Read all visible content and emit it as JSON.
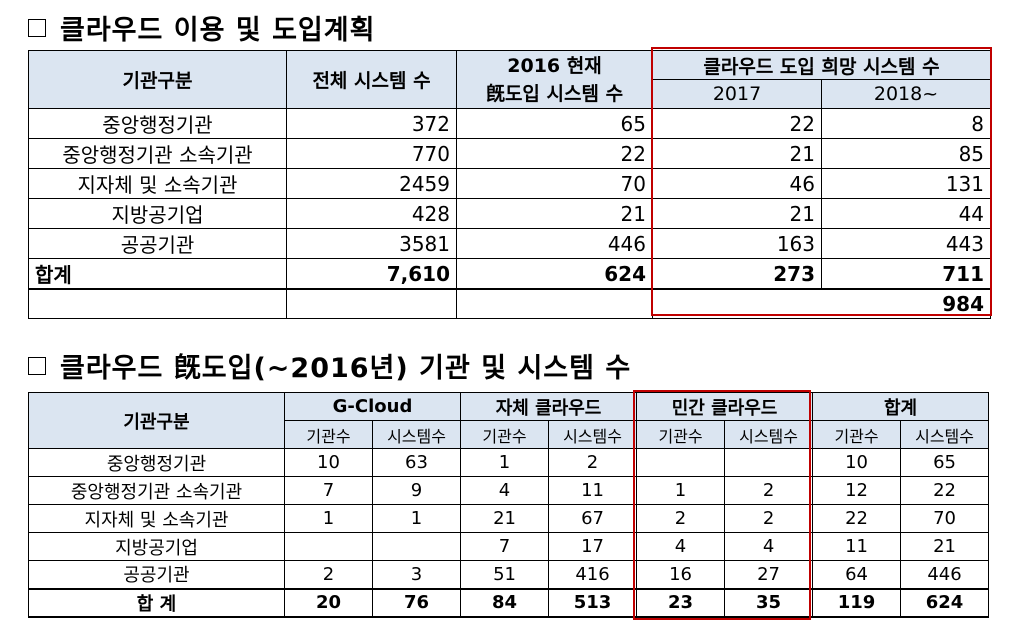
{
  "section1": {
    "title": "클라우드 이용 및 도입계획",
    "headers": {
      "org": "기관구분",
      "total": "전체 시스템 수",
      "adopted_line1": "2016 현재",
      "adopted_line2": "旣도입 시스템 수",
      "plan": "클라우드 도입 희망 시스템 수",
      "plan_2017": "2017",
      "plan_2018": "2018~"
    },
    "rows": [
      {
        "name": "중앙행정기관",
        "total": "372",
        "adopted": "65",
        "y2017": "22",
        "y2018": "8"
      },
      {
        "name": "중앙행정기관 소속기관",
        "total": "770",
        "adopted": "22",
        "y2017": "21",
        "y2018": "85"
      },
      {
        "name": "지자체 및 소속기관",
        "total": "2459",
        "adopted": "70",
        "y2017": "46",
        "y2018": "131"
      },
      {
        "name": "지방공기업",
        "total": "428",
        "adopted": "21",
        "y2017": "21",
        "y2018": "44"
      },
      {
        "name": "공공기관",
        "total": "3581",
        "adopted": "446",
        "y2017": "163",
        "y2018": "443"
      }
    ],
    "total_row": {
      "name": "합계",
      "total": "7,610",
      "adopted": "624",
      "y2017": "273",
      "y2018": "711"
    },
    "grand_total": "984"
  },
  "section2": {
    "title": "클라우드 旣도입(~2016년) 기관 및 시스템 수",
    "headers": {
      "org": "기관구분",
      "gcloud": "G-Cloud",
      "own": "자체 클라우드",
      "private": "민간 클라우드",
      "sum": "합계",
      "orgs": "기관수",
      "systems": "시스템수"
    },
    "rows": [
      {
        "name": "중앙행정기관",
        "g_org": "10",
        "g_sys": "63",
        "o_org": "1",
        "o_sys": "2",
        "p_org": "",
        "p_sys": "",
        "s_org": "10",
        "s_sys": "65"
      },
      {
        "name": "중앙행정기관 소속기관",
        "g_org": "7",
        "g_sys": "9",
        "o_org": "4",
        "o_sys": "11",
        "p_org": "1",
        "p_sys": "2",
        "s_org": "12",
        "s_sys": "22"
      },
      {
        "name": "지자체 및 소속기관",
        "g_org": "1",
        "g_sys": "1",
        "o_org": "21",
        "o_sys": "67",
        "p_org": "2",
        "p_sys": "2",
        "s_org": "22",
        "s_sys": "70"
      },
      {
        "name": "지방공기업",
        "g_org": "",
        "g_sys": "",
        "o_org": "7",
        "o_sys": "17",
        "p_org": "4",
        "p_sys": "4",
        "s_org": "11",
        "s_sys": "21"
      },
      {
        "name": "공공기관",
        "g_org": "2",
        "g_sys": "3",
        "o_org": "51",
        "o_sys": "416",
        "p_org": "16",
        "p_sys": "27",
        "s_org": "64",
        "s_sys": "446"
      }
    ],
    "total_row": {
      "name": "합 계",
      "g_org": "20",
      "g_sys": "76",
      "o_org": "84",
      "o_sys": "513",
      "p_org": "23",
      "p_sys": "35",
      "s_org": "119",
      "s_sys": "624"
    }
  },
  "highlight_color": "#c00000",
  "header_bg": "#dbe5f1"
}
